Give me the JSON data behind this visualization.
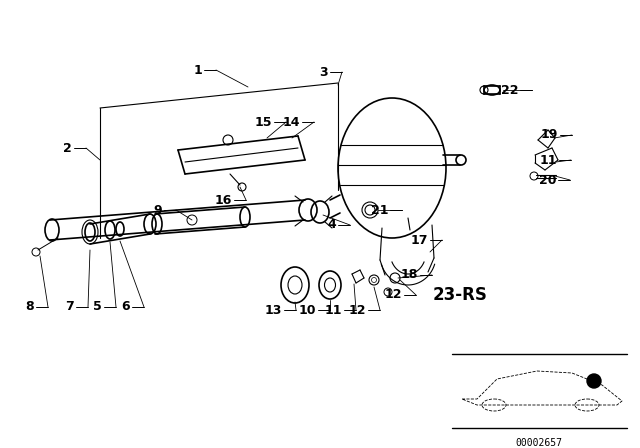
{
  "bg_color": "#ffffff",
  "line_color": "#000000",
  "fig_width": 6.4,
  "fig_height": 4.48,
  "dpi": 100,
  "part_label_text": "23-RS",
  "diagram_code": "00002657",
  "label_fontsize": 9,
  "rs_fontsize": 12
}
